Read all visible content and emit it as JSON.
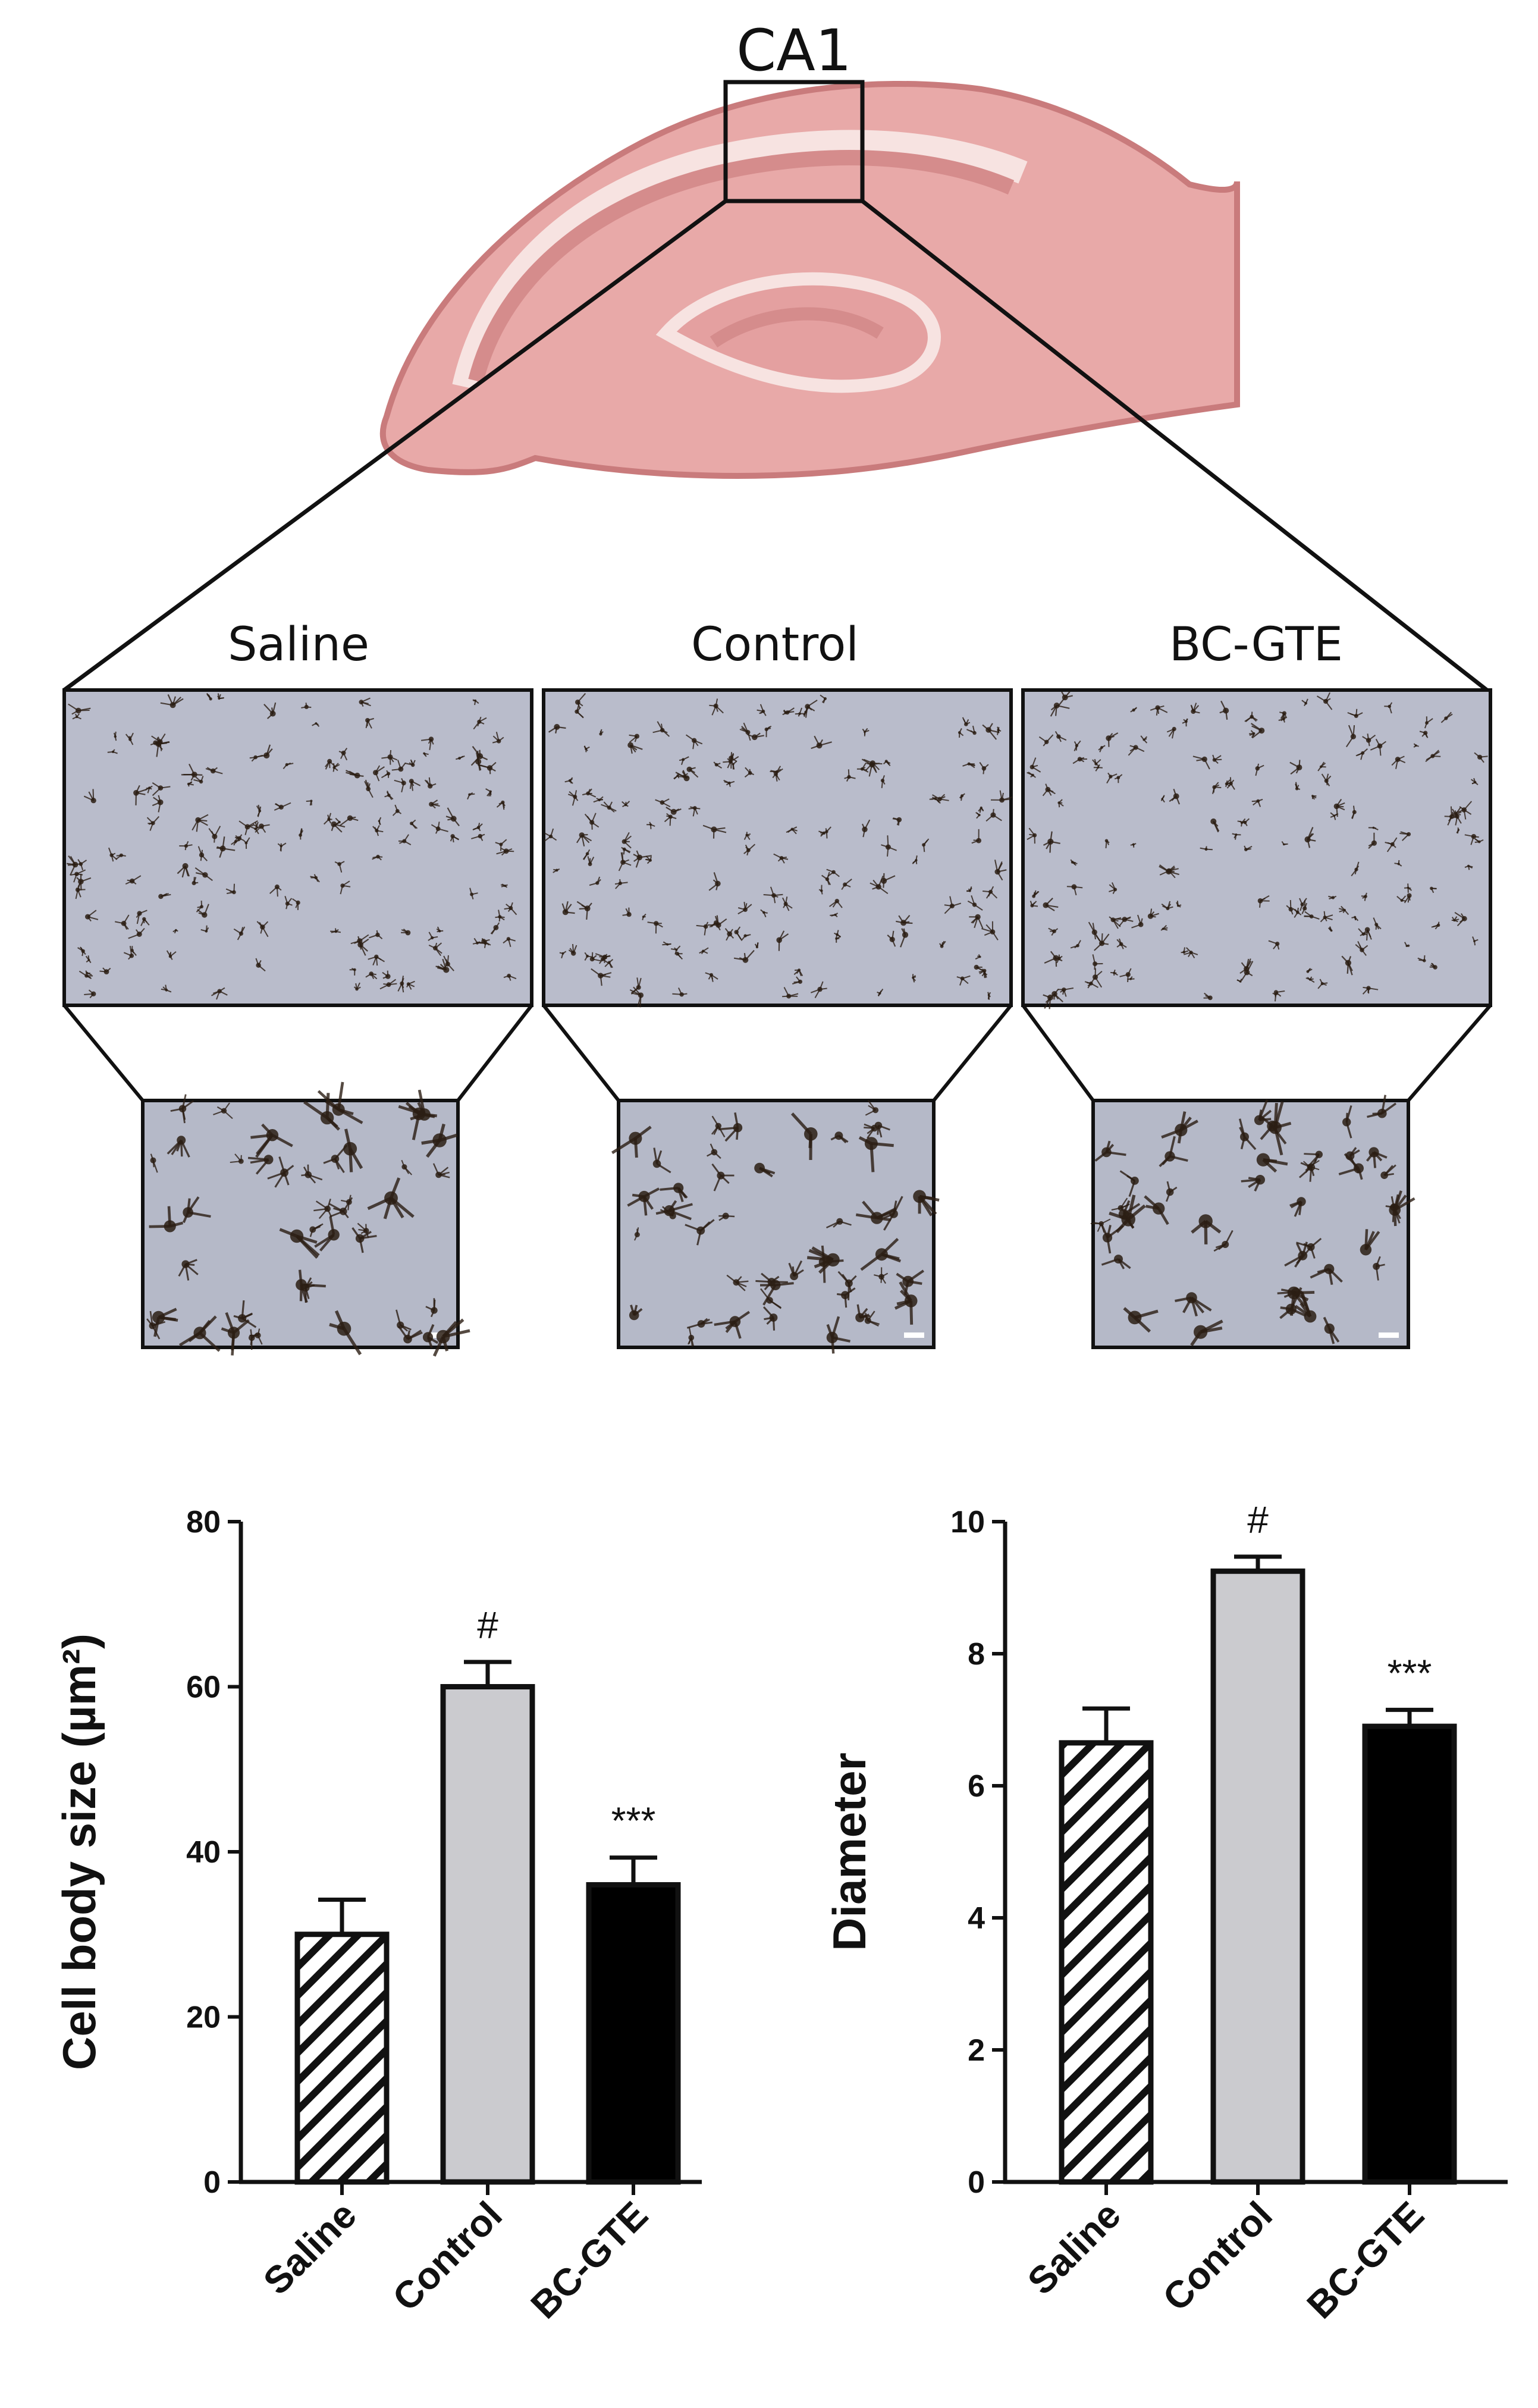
{
  "illustration": {
    "region_label": "CA1",
    "panel_titles": [
      "Saline",
      "Control",
      "BC-GTE"
    ]
  },
  "colors": {
    "tissue_fill": "#e8a9a8",
    "tissue_dark": "#d58c8c",
    "tissue_light": "#f7e3e1",
    "micrograph_bg": "#b9bccb",
    "cell_stain": "#2b1e14",
    "saline_bar": "hatched",
    "control_bar": "#cbcbcf",
    "bcgte_bar": "#000000"
  },
  "chart_data": [
    {
      "type": "bar",
      "categories": [
        "Saline",
        "Control",
        "BC-GTE"
      ],
      "values": [
        30,
        60,
        36
      ],
      "errors": [
        4.2,
        3.0,
        3.3
      ],
      "annotations": [
        "",
        "#",
        "***"
      ],
      "ylabel": "Cell body size (µm²)",
      "ylim": [
        0,
        80
      ],
      "yticks": [
        0,
        20,
        40,
        60,
        80
      ],
      "grid": false
    },
    {
      "type": "bar",
      "categories": [
        "Saline",
        "Control",
        "BC-GTE"
      ],
      "values": [
        6.65,
        9.25,
        6.9
      ],
      "errors": [
        0.52,
        0.22,
        0.25
      ],
      "annotations": [
        "",
        "#",
        "***"
      ],
      "ylabel": "Diameter",
      "ylim": [
        0,
        10
      ],
      "yticks": [
        0,
        2,
        4,
        6,
        8,
        10
      ],
      "grid": false
    }
  ]
}
